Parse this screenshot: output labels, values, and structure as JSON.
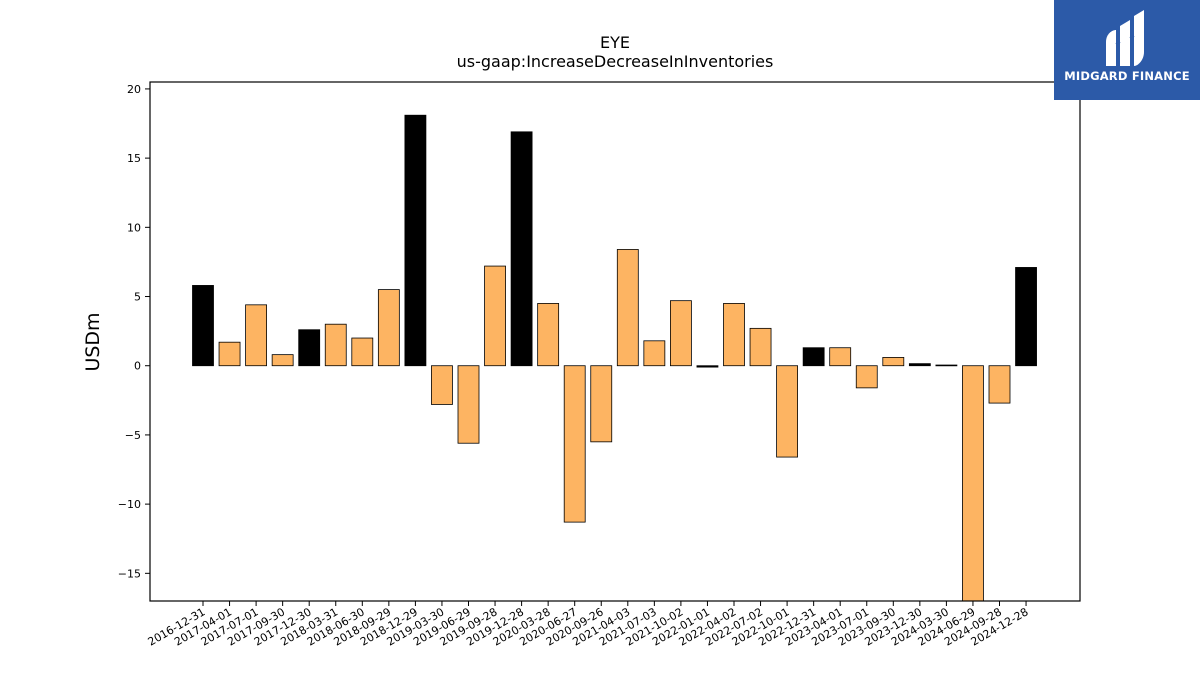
{
  "logo": {
    "text": "MIDGARD FINANCE"
  },
  "colors": {
    "positive_highlight": "#000000",
    "normal": "#fdb462",
    "edge": "#000000",
    "logo_bg": "#2c5aa8"
  },
  "chart_data": {
    "type": "bar",
    "title": "EYE",
    "subtitle": "us-gaap:IncreaseDecreaseInInventories",
    "xlabel": "",
    "ylabel": "USDm",
    "ylim": [
      -17,
      20.5
    ],
    "yticks": [
      20,
      15,
      10,
      5,
      0,
      -5,
      -10,
      -15
    ],
    "ytick_labels": [
      "20",
      "15",
      "10",
      "5",
      "0",
      "−5",
      "−10",
      "−15"
    ],
    "grid": false,
    "categories": [
      "2016-12-31",
      "2017-04-01",
      "2017-07-01",
      "2017-09-30",
      "2017-12-30",
      "2018-03-31",
      "2018-06-30",
      "2018-09-29",
      "2018-12-29",
      "2019-03-30",
      "2019-06-29",
      "2019-09-28",
      "2019-12-28",
      "2020-03-28",
      "2020-06-27",
      "2020-09-26",
      "2021-04-03",
      "2021-07-03",
      "2021-10-02",
      "2022-01-01",
      "2022-04-02",
      "2022-07-02",
      "2022-10-01",
      "2022-12-31",
      "2023-04-01",
      "2023-07-01",
      "2023-09-30",
      "2023-12-30",
      "2024-03-30",
      "2024-06-29",
      "2024-09-28",
      "2024-12-28"
    ],
    "values": [
      5.8,
      1.7,
      4.4,
      0.8,
      2.6,
      3.0,
      2.0,
      5.5,
      18.1,
      -2.8,
      -5.6,
      7.2,
      16.9,
      4.5,
      -11.3,
      -5.5,
      8.4,
      1.8,
      4.7,
      -0.1,
      4.5,
      2.7,
      -6.6,
      1.3,
      1.3,
      -1.6,
      0.6,
      0.15,
      0.05,
      -17.0,
      -2.7,
      7.1
    ],
    "highlight": [
      true,
      false,
      false,
      false,
      true,
      false,
      false,
      false,
      true,
      false,
      false,
      false,
      true,
      false,
      false,
      false,
      false,
      false,
      false,
      true,
      false,
      false,
      false,
      true,
      false,
      false,
      false,
      true,
      true,
      false,
      false,
      true
    ]
  }
}
